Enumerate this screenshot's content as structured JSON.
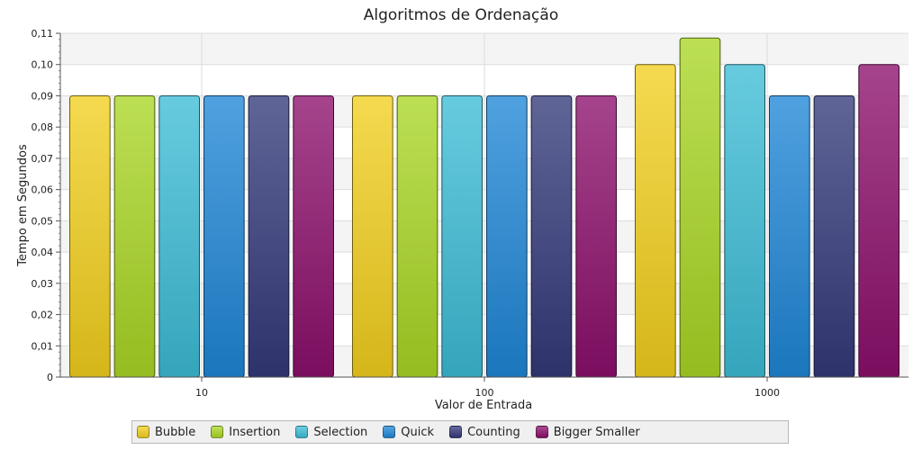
{
  "chart_data": {
    "type": "bar",
    "title": "Algoritmos de Ordenação",
    "xlabel": "Valor de Entrada",
    "ylabel": "Tempo em Segundos",
    "categories": [
      "10",
      "100",
      "1000"
    ],
    "ylim": [
      0,
      0.11
    ],
    "yticks": [
      "0",
      "0,01",
      "0,02",
      "0,03",
      "0,04",
      "0,05",
      "0,06",
      "0,07",
      "0,08",
      "0,09",
      "0,10",
      "0,11"
    ],
    "grid": true,
    "legend_position": "bottom",
    "series": [
      {
        "name": "Bubble",
        "color": "#f2cf1e",
        "values": [
          0.09,
          0.09,
          0.1
        ]
      },
      {
        "name": "Insertion",
        "color": "#a9d624",
        "values": [
          0.09,
          0.09,
          0.1085
        ]
      },
      {
        "name": "Selection",
        "color": "#3cbcd6",
        "values": [
          0.09,
          0.09,
          0.1
        ]
      },
      {
        "name": "Quick",
        "color": "#1f86d6",
        "values": [
          0.09,
          0.09,
          0.09
        ]
      },
      {
        "name": "Counting",
        "color": "#33397a",
        "values": [
          0.09,
          0.09,
          0.09
        ]
      },
      {
        "name": "Bigger Smaller",
        "color": "#8c0f6b",
        "values": [
          0.09,
          0.09,
          0.1
        ]
      }
    ]
  }
}
